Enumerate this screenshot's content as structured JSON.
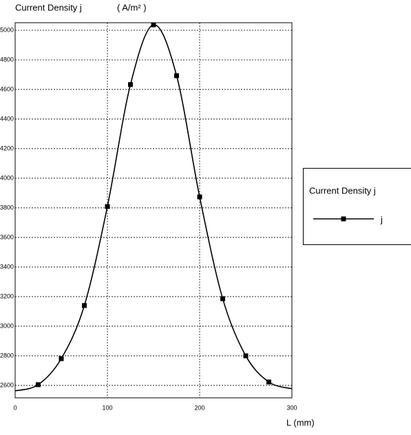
{
  "chart_data": {
    "type": "line",
    "ylabel": "Current Density j",
    "yunit": "( A/m² )",
    "xlabel": "L (mm)",
    "legend_title": "Current Density j",
    "legend": "right",
    "grid": true,
    "x": [
      0,
      25,
      50,
      75,
      100,
      125,
      150,
      175,
      200,
      225,
      250,
      275,
      300
    ],
    "series": [
      {
        "name": "j",
        "color": "#000000",
        "values": [
          2563,
          2605,
          2781,
          3140,
          3809,
          4633,
          5037,
          4693,
          3874,
          3186,
          2800,
          2623,
          2577
        ],
        "markers": [
          false,
          true,
          true,
          true,
          true,
          true,
          true,
          true,
          true,
          true,
          true,
          true,
          false
        ]
      }
    ],
    "xlim": [
      0,
      300
    ],
    "xticks": [
      0,
      100,
      200,
      300
    ],
    "ylim": [
      2516,
      5051
    ],
    "yticks": [
      2600,
      2800,
      3000,
      3200,
      3400,
      3600,
      3800,
      4000,
      4200,
      4400,
      4600,
      4800,
      5000
    ]
  }
}
